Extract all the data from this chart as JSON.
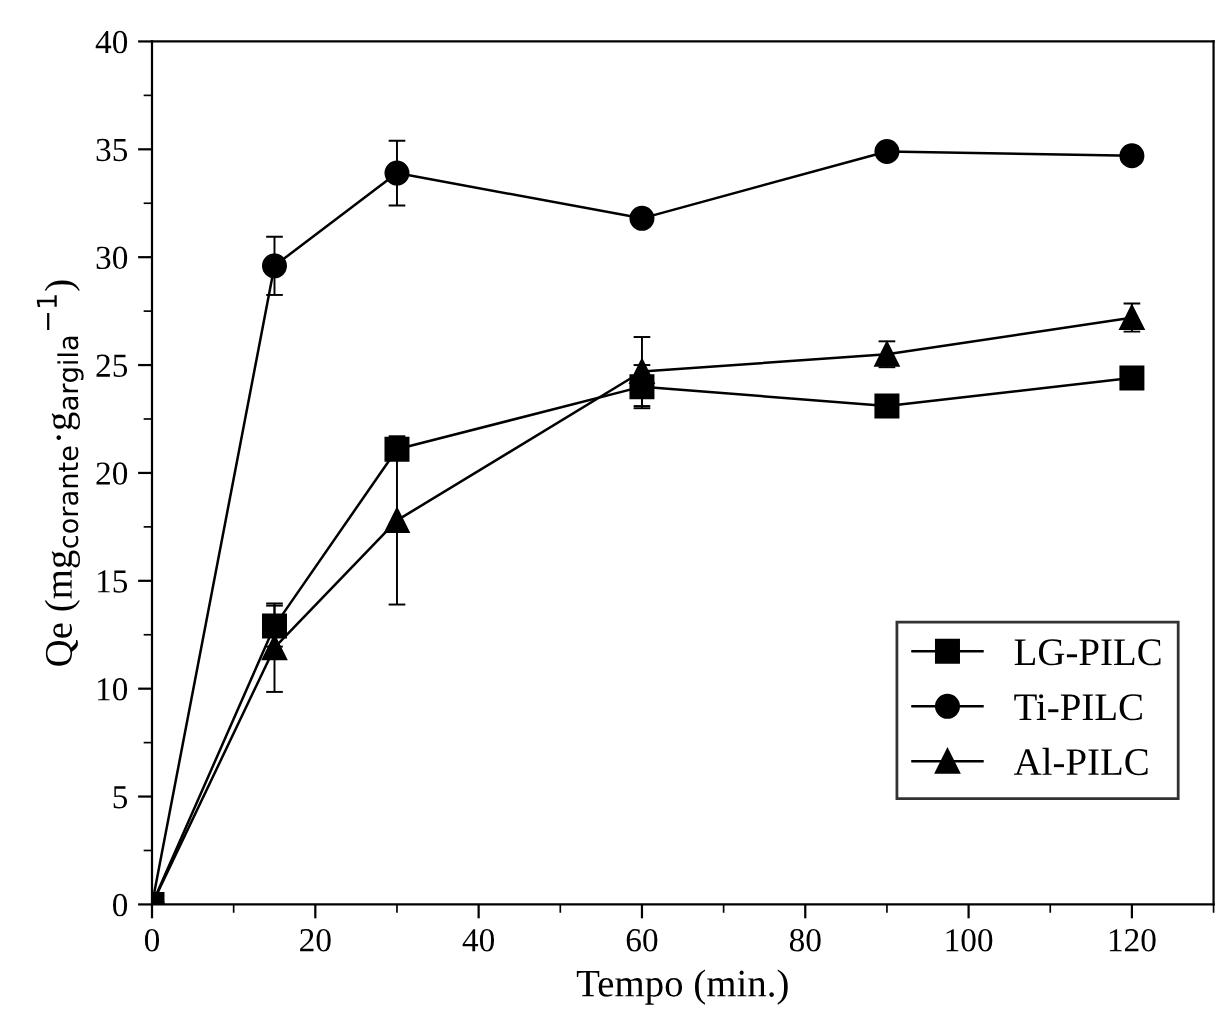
{
  "chart_data": {
    "type": "line",
    "xlabel": "Tempo (min.)",
    "ylabel": "Qe (mg$_{corante}$·g$_{argila}$$^{−1}$)",
    "x": [
      0,
      15,
      30,
      60,
      90,
      120
    ],
    "series": [
      {
        "name": "LG-PILC",
        "color": "#000000",
        "marker": "square",
        "values": [
          0,
          12.9,
          21.1,
          24.0,
          23.1,
          24.4
        ],
        "errors": [
          null,
          0.95,
          0.4,
          1.0,
          null,
          null
        ]
      },
      {
        "name": "Ti-PILC",
        "color": "#000000",
        "marker": "circle",
        "values": [
          0,
          29.6,
          33.9,
          31.8,
          34.9,
          34.7
        ],
        "errors": [
          null,
          1.35,
          1.5,
          null,
          null,
          0.3
        ]
      },
      {
        "name": "Al-PILC",
        "color": "#000000",
        "marker": "triangle",
        "values": [
          0,
          11.9,
          17.8,
          24.7,
          25.5,
          27.2
        ],
        "errors": [
          null,
          2.05,
          3.9,
          1.6,
          0.6,
          0.65
        ]
      }
    ],
    "xlim": [
      0,
      130
    ],
    "xticks": [
      0,
      20,
      40,
      60,
      80,
      100,
      120
    ],
    "ylim": [
      0,
      40
    ],
    "yticks": [
      0,
      5,
      10,
      15,
      20,
      25,
      30,
      35,
      40
    ],
    "grid": false,
    "legend": "bottom right",
    "line_style": "solid"
  }
}
